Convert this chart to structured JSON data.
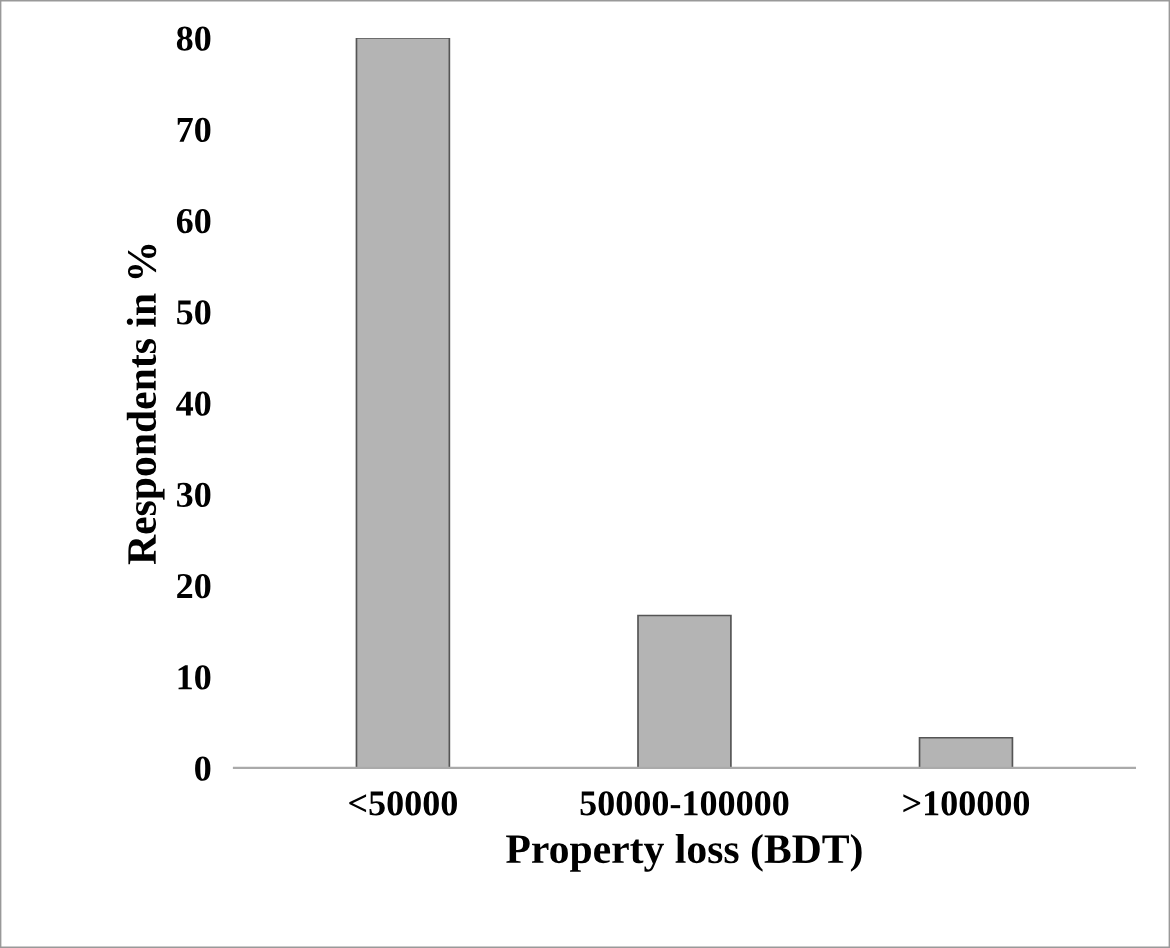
{
  "chart_data": {
    "type": "bar",
    "xlabel": "Property loss (BDT)",
    "ylabel": "Respondents in %",
    "categories": [
      "<50000",
      "50000-100000",
      ">100000"
    ],
    "values": [
      80,
      16.7,
      3.3
    ],
    "color": "#b4b4b4",
    "ylim": [
      0,
      80
    ],
    "yticks": [
      0,
      10,
      20,
      30,
      40,
      50,
      60,
      70,
      80
    ],
    "grid": false
  }
}
